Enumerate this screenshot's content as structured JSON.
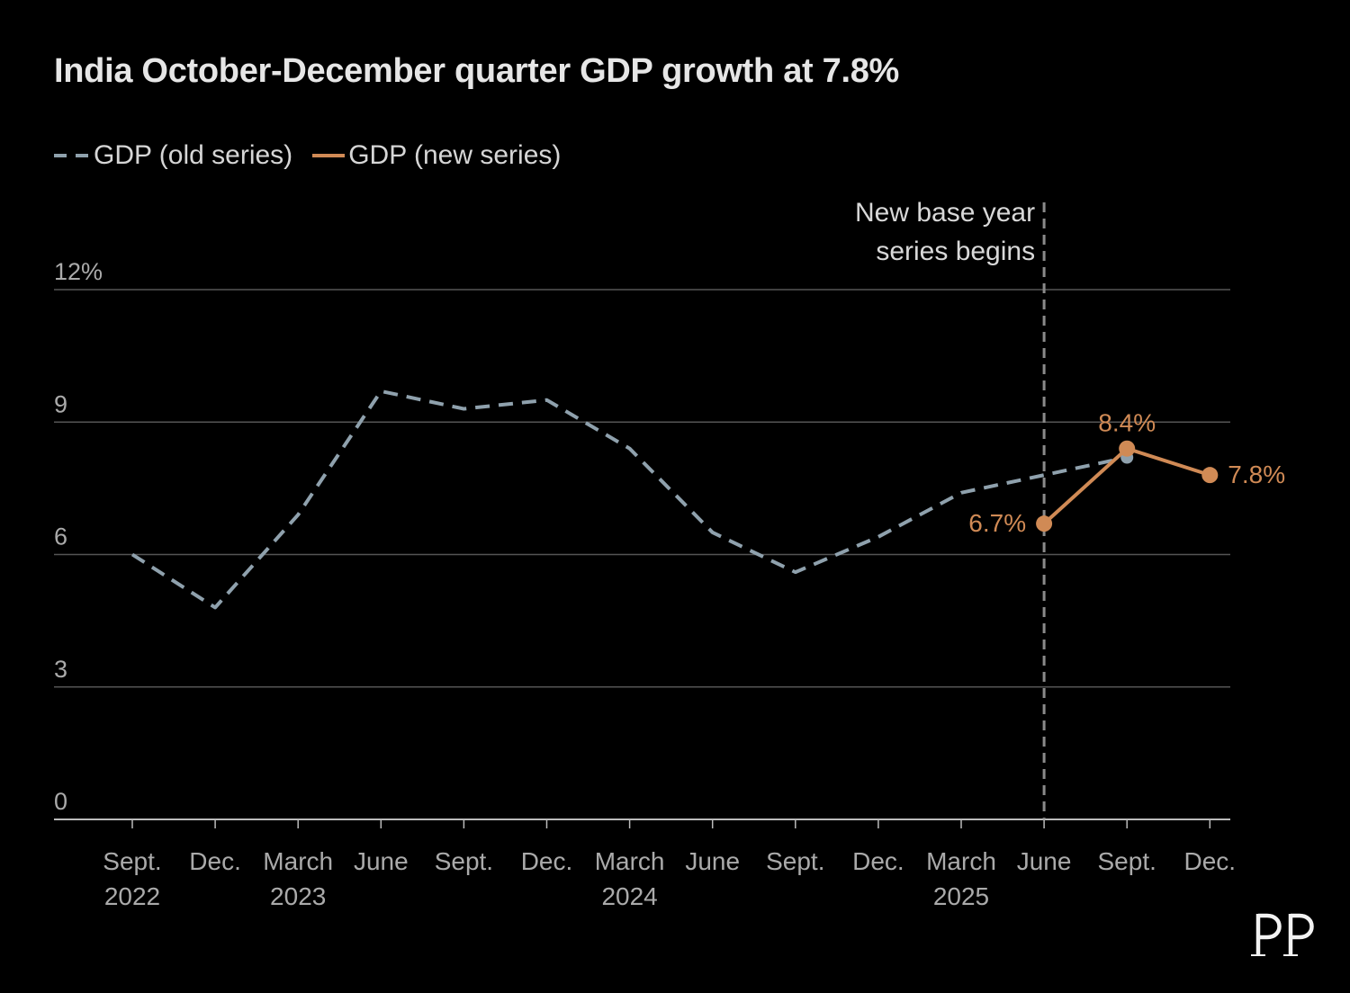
{
  "chart_data": {
    "type": "line",
    "title": "India October-December quarter GDP growth at 7.8%",
    "xlabel": "",
    "ylabel": "",
    "ylim": [
      0,
      12
    ],
    "yticks": [
      {
        "value": 12,
        "label": "12%"
      },
      {
        "value": 9,
        "label": "9"
      },
      {
        "value": 6,
        "label": "6"
      },
      {
        "value": 3,
        "label": "3"
      },
      {
        "value": 0,
        "label": "0"
      }
    ],
    "categories": [
      "Sept. 2022",
      "Dec. 2022",
      "March 2023",
      "June 2023",
      "Sept. 2023",
      "Dec. 2023",
      "March 2024",
      "June 2024",
      "Sept. 2024",
      "Dec. 2024",
      "March 2025",
      "June 2025",
      "Sept. 2025",
      "Dec. 2025"
    ],
    "x_tick_labels": [
      {
        "line1": "Sept.",
        "line2": "2022"
      },
      {
        "line1": "Dec.",
        "line2": ""
      },
      {
        "line1": "March",
        "line2": "2023"
      },
      {
        "line1": "June",
        "line2": ""
      },
      {
        "line1": "Sept.",
        "line2": ""
      },
      {
        "line1": "Dec.",
        "line2": ""
      },
      {
        "line1": "March",
        "line2": "2024"
      },
      {
        "line1": "June",
        "line2": ""
      },
      {
        "line1": "Sept.",
        "line2": ""
      },
      {
        "line1": "Dec.",
        "line2": ""
      },
      {
        "line1": "March",
        "line2": "2025"
      },
      {
        "line1": "June",
        "line2": ""
      },
      {
        "line1": "Sept.",
        "line2": ""
      },
      {
        "line1": "Dec.",
        "line2": ""
      }
    ],
    "series": [
      {
        "name": "GDP (old series)",
        "style": "dashed",
        "color": "#8fa1ad",
        "values": [
          6.0,
          4.8,
          6.9,
          9.7,
          9.3,
          9.5,
          8.4,
          6.5,
          5.6,
          6.4,
          7.4,
          7.8,
          8.2,
          null
        ]
      },
      {
        "name": "GDP (new series)",
        "style": "solid",
        "color": "#d08a55",
        "values": [
          null,
          null,
          null,
          null,
          null,
          null,
          null,
          null,
          null,
          null,
          null,
          6.7,
          8.4,
          7.8
        ],
        "data_labels": [
          null,
          null,
          null,
          null,
          null,
          null,
          null,
          null,
          null,
          null,
          null,
          "6.7%",
          "8.4%",
          "7.8%"
        ]
      }
    ],
    "annotation": {
      "text_line1": "New base year",
      "text_line2": "series begins",
      "category_index": 11
    },
    "legend_position": "top-left",
    "grid": true,
    "colors": {
      "background": "#000000",
      "grid": "#555555",
      "axis": "#bbbbbb",
      "tick_text": "#aaaaaa",
      "old_series": "#8fa1ad",
      "new_series": "#d08a55",
      "annotation_line": "#8a8a8a",
      "annotation_text": "#d8d8d8"
    }
  }
}
